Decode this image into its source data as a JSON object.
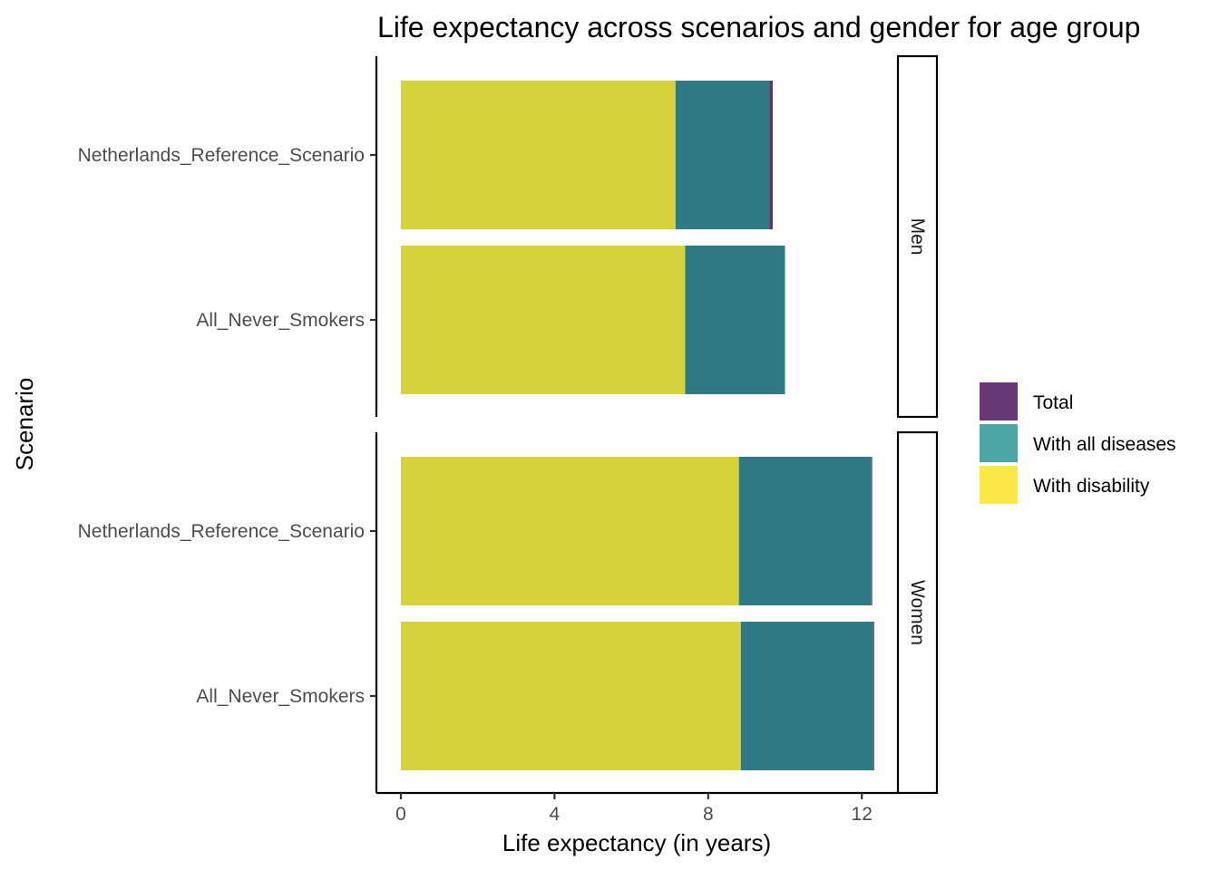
{
  "chart_data": {
    "type": "bar",
    "orientation": "horizontal",
    "stacked": true,
    "title": "Life expectancy across scenarios and gender for age group",
    "xlabel": "Life expectancy (in years)",
    "ylabel": "Scenario",
    "xlim": [
      0,
      13
    ],
    "xticks": [
      "0",
      "4",
      "8",
      "12"
    ],
    "categories": [
      "Netherlands_Reference_Scenario",
      "All_Never_Smokers"
    ],
    "facets": [
      {
        "label": "Men",
        "series": [
          {
            "name": "With disability",
            "values": [
              7.15,
              7.4
            ]
          },
          {
            "name": "With all diseases",
            "values": [
              2.45,
              2.6
            ]
          },
          {
            "name": "Total",
            "values": [
              0.08,
              0.0
            ]
          }
        ]
      },
      {
        "label": "Women",
        "series": [
          {
            "name": "With disability",
            "values": [
              8.8,
              8.85
            ]
          },
          {
            "name": "With all diseases",
            "values": [
              3.45,
              3.45
            ]
          },
          {
            "name": "Total",
            "values": [
              0.02,
              0.02
            ]
          }
        ]
      }
    ],
    "legend": {
      "position": "right",
      "items": [
        "Total",
        "With all diseases",
        "With disability"
      ]
    },
    "colors": {
      "With disability": "#d5d23a",
      "With all diseases": "#2e7b87",
      "Total": "#60306e",
      "legend_Total": "#663775",
      "legend_With all diseases": "#4ea6a4",
      "legend_With disability": "#fde84b"
    },
    "grid": false
  }
}
